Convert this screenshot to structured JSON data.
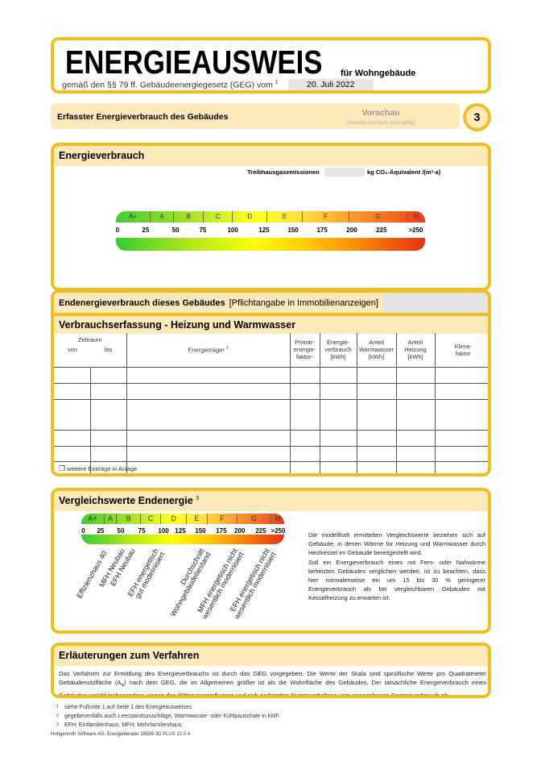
{
  "header": {
    "title": "ENERGIEAUSWEIS",
    "subtitle_type": "für Wohngebäude",
    "law_line": "gemäß den §§ 79 ff. Gebäudeenergiegesetz (GEG) vom",
    "law_sup": "1",
    "date": "20. Juli 2022"
  },
  "section_bar": {
    "label": "Erfasster Energieverbrauch des Gebäudes",
    "preview": "Vorschau",
    "preview_note": "(Ausweis rechtlich nicht gültig)",
    "page": "3"
  },
  "energy": {
    "title": "Energieverbrauch",
    "ghg_label": "Treibhausgasemissionen",
    "ghg_value": "",
    "ghg_unit": "kg CO₂-Äquivalent /(m²·a)"
  },
  "scale": {
    "classes": [
      "A+",
      "A",
      "B",
      "C",
      "D",
      "E",
      "F",
      "G",
      "H"
    ],
    "ticks": [
      "0",
      "25",
      "50",
      "75",
      "100",
      "125",
      "150",
      "175",
      "200",
      "225",
      ">250"
    ]
  },
  "final_energy": {
    "label": "Endenergieverbrauch dieses Gebäudes",
    "note": "[Pflichtangabe in Immobilienanzeigen]",
    "value": ""
  },
  "consumption": {
    "title": "Verbrauchserfassung - Heizung und Warmwasser",
    "headers": {
      "period": "Zeitraum",
      "from": "von",
      "to": "bis",
      "carrier": "Energieträger",
      "carrier_sup": "2",
      "primary": "Primär-\nenergie-\nfaktor-",
      "consumption": "Energie-\nverbrauch\n[kWh]",
      "water": "Anteil\nWarmwasser\n[kWh]",
      "heating": "Anteil\nHeizung\n[kWh]",
      "climate": "Klima-\nfaktor"
    },
    "rows": [
      [
        "",
        "",
        "",
        "",
        "",
        "",
        "",
        ""
      ],
      [
        "",
        "",
        "",
        "",
        "",
        "",
        "",
        ""
      ],
      [
        "",
        "",
        "",
        "",
        "",
        "",
        "",
        ""
      ],
      [
        "",
        "",
        "",
        "",
        "",
        "",
        "",
        ""
      ],
      [
        "",
        "",
        "",
        "",
        "",
        "",
        "",
        ""
      ],
      [
        "",
        "",
        "",
        "",
        "",
        "",
        "",
        ""
      ]
    ],
    "more": "weitere Einträge in Anlage"
  },
  "comparison": {
    "title": "Vergleichswerte Endenergie",
    "title_sup": "3",
    "labels": [
      "Effizienzhaus 40",
      "MFH Neubau",
      "EFH Neubau",
      "EFH energetisch\ngut modernisiert",
      "Durchschnitt\nWohngebäudebestand",
      "MFH energetisch nicht\nwesentlich modernisiert",
      "EFH energetisch nicht\nwesentlich modernisiert"
    ],
    "text": "Die modellhaft ermittelten Vergleichswerte beziehen sich auf Gebäude, in denen Wärme für Heizung und Warmwasser durch Heizkessel im Gebäude bereitgestellt wird.\nSoll ein Energieverbrauch eines mit Fern- oder Nahwärme beheizten Gebäudes verglichen werden, ist zu beachten, dass hier normalerweise ein um 15 bis 30 % geringerer Energieverbrauch als bei vergleichbaren Gebäuden mit Kesselheizung zu erwarten ist."
  },
  "explanation": {
    "title": "Erläuterungen zum Verfahren",
    "text": "Das Verfahren zur Ermittlung des Energieverbrauchs ist durch das GEG vorgegeben. Die Werte der Skala sind spezifische Werte pro Quadratmeter Gebäudenutzfläche (A_N) nach dem GEG, die im Allgemeinen größer ist als die Wohnfläche des Gebäudes. Der tatsächliche Energieverbrauch eines Gebäudes weicht insbesondere wegen des Witterungseinflusses und sich ändernden Nutzerverhaltens vom angegebenen Energieverbrauch ab."
  },
  "footnotes": [
    {
      "n": "1",
      "text": "siehe Fußnote 1 auf Seite 1 des Energieausweises"
    },
    {
      "n": "2",
      "text": "gegebenenfalls auch Leerstandszuschläge, Warmwasser- oder Kühlpauschale in kWh"
    },
    {
      "n": "3",
      "text": "EFH: Einfamilienhaus, MFH: Mehrfamilienhaus"
    }
  ],
  "software": "Hottgenroth Software AG, Energieberater 18599 3D PLUS 12.0.4",
  "colors": {
    "frame": "#f0be1e",
    "header_fill": "#fde9b9"
  }
}
